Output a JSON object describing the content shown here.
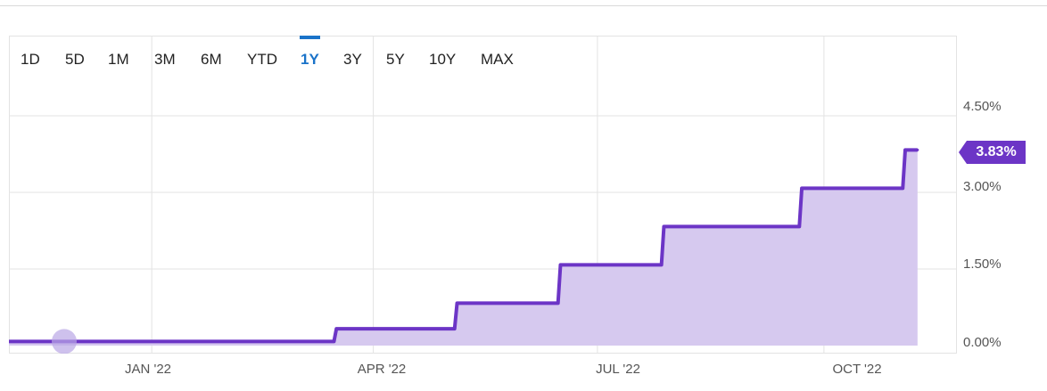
{
  "range_selector": {
    "tabs": [
      "1D",
      "5D",
      "1M",
      "3M",
      "6M",
      "YTD",
      "1Y",
      "3Y",
      "5Y",
      "10Y",
      "MAX"
    ],
    "active": "1Y",
    "active_color": "#1a73c9"
  },
  "current_value_label": "3.83%",
  "colors": {
    "line": "#6c35c6",
    "fill": "#d6c9ef",
    "grid": "#e3e3e3"
  },
  "chart_data": {
    "type": "area",
    "x_tick_labels": [
      "JAN '22",
      "APR '22",
      "JUL '22",
      "OCT '22"
    ],
    "y_tick_labels": [
      "4.50%",
      "3.00%",
      "1.50%",
      "0.00%"
    ],
    "ylim": [
      0,
      6
    ],
    "xlim": [
      "2021-11-04",
      "2022-11-24"
    ],
    "grid": true,
    "series": [
      {
        "points": [
          [
            "2021-11-04",
            0.08
          ],
          [
            "2022-03-16",
            0.08
          ],
          [
            "2022-03-17",
            0.33
          ],
          [
            "2022-05-04",
            0.33
          ],
          [
            "2022-05-05",
            0.83
          ],
          [
            "2022-06-15",
            0.83
          ],
          [
            "2022-06-16",
            1.58
          ],
          [
            "2022-07-27",
            1.58
          ],
          [
            "2022-07-28",
            2.33
          ],
          [
            "2022-09-21",
            2.33
          ],
          [
            "2022-09-22",
            3.08
          ],
          [
            "2022-11-02",
            3.08
          ],
          [
            "2022-11-03",
            3.83
          ],
          [
            "2022-11-08",
            3.83
          ]
        ]
      }
    ]
  }
}
